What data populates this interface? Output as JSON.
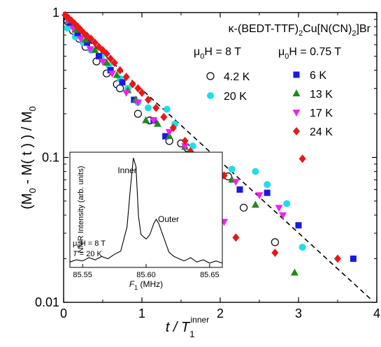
{
  "chart_data": [
    {
      "type": "scatter",
      "xscale": "linear",
      "yscale": "log",
      "xlim": [
        0,
        4
      ],
      "ylim": [
        0.01,
        1
      ],
      "x_ticks": [
        0,
        1,
        2,
        3,
        4
      ],
      "x_tick_labels": [
        "0",
        "1",
        "2",
        "3",
        "4"
      ],
      "y_ticks": [
        0.01,
        0.1,
        1
      ],
      "y_tick_labels": [
        "0.01",
        "0.1",
        "1"
      ],
      "xlabel": {
        "pre": "t / T",
        "sub": "1",
        "sup": "inner"
      },
      "ylabel": {
        "p1": "(M",
        "s1": "0",
        "p2": " - M( t ) ) / M",
        "s2": "0"
      },
      "title": {
        "kappa": "κ",
        "pre": "-(BEDT-TTF)",
        "sub1": "2",
        "mid": "Cu[N(CN)",
        "sub2": "2",
        "post": "]Br"
      },
      "field_headers": [
        {
          "mu": "μ",
          "sub": "0",
          "rest": "H = 8 T"
        },
        {
          "mu": "μ",
          "sub": "0",
          "rest": "H = 0.75 T"
        }
      ],
      "legend_placement": "top-right",
      "fit_line": {
        "style": "dashed",
        "x": [
          0.0,
          3.95
        ],
        "y": [
          0.92,
          0.0102
        ]
      },
      "series": [
        {
          "name": "4.2 K",
          "group": "8 T",
          "marker": "circle-open",
          "color": "#000000",
          "x": [
            0.05,
            0.12,
            0.2,
            0.28,
            0.42,
            0.55,
            0.68,
            0.72,
            0.95,
            1.1,
            1.35,
            1.5,
            1.58,
            1.8,
            2.1,
            2.3,
            2.7
          ],
          "y": [
            0.87,
            0.75,
            0.66,
            0.58,
            0.46,
            0.38,
            0.32,
            0.3,
            0.2,
            0.18,
            0.13,
            0.125,
            0.116,
            0.084,
            0.074,
            0.045,
            0.026
          ]
        },
        {
          "name": "20 K",
          "group": "8 T",
          "marker": "circle",
          "color": "#22dde8",
          "x": [
            0.05,
            0.15,
            0.25,
            0.35,
            0.48,
            0.58,
            0.72,
            0.82,
            0.95,
            1.08,
            1.32,
            1.42,
            1.65,
            1.9,
            2.15,
            2.45,
            2.6,
            2.85,
            3.05
          ],
          "y": [
            0.78,
            0.68,
            0.62,
            0.55,
            0.5,
            0.43,
            0.35,
            0.3,
            0.24,
            0.22,
            0.215,
            0.17,
            0.12,
            0.036,
            0.083,
            0.08,
            0.065,
            0.048,
            0.024
          ]
        },
        {
          "name": "6 K",
          "group": "0.75 T",
          "marker": "square",
          "color": "#1a1ae0",
          "x": [
            0.08,
            0.18,
            0.3,
            0.45,
            0.6,
            0.75,
            0.9,
            1.15,
            1.3,
            1.5,
            1.75,
            1.95,
            2.25,
            2.6,
            3.0,
            3.7
          ],
          "y": [
            0.85,
            0.72,
            0.62,
            0.5,
            0.4,
            0.33,
            0.25,
            0.18,
            0.14,
            0.1,
            0.1,
            0.085,
            0.06,
            0.057,
            0.034,
            0.02
          ]
        },
        {
          "name": "13 K",
          "group": "0.75 T",
          "marker": "triangle-up",
          "color": "#1e8a1e",
          "x": [
            0.06,
            0.15,
            0.28,
            0.4,
            0.55,
            0.68,
            0.82,
            0.92,
            1.05,
            1.2,
            1.35,
            1.55,
            1.75,
            2.0,
            2.15,
            2.45,
            2.95
          ],
          "y": [
            0.88,
            0.76,
            0.65,
            0.55,
            0.45,
            0.37,
            0.29,
            0.25,
            0.18,
            0.17,
            0.14,
            0.118,
            0.09,
            0.075,
            0.07,
            0.047,
            0.016
          ]
        },
        {
          "name": "17 K",
          "group": "0.75 T",
          "marker": "triangle-down",
          "color": "#ee22ee",
          "x": [
            0.05,
            0.12,
            0.22,
            0.34,
            0.5,
            0.62,
            0.8,
            0.95,
            1.15,
            1.35,
            1.55,
            1.75,
            1.95,
            2.2,
            2.5,
            2.75,
            2.8,
            2.05
          ],
          "y": [
            0.89,
            0.78,
            0.66,
            0.56,
            0.46,
            0.38,
            0.28,
            0.24,
            0.18,
            0.15,
            0.12,
            0.1,
            0.09,
            0.068,
            0.055,
            0.045,
            0.04,
            0.036
          ]
        },
        {
          "name": "24 K",
          "group": "0.75 T",
          "marker": "diamond",
          "color": "#e81818",
          "x": [
            0.02,
            0.06,
            0.1,
            0.14,
            0.18,
            0.22,
            0.26,
            0.3,
            0.35,
            0.4,
            0.45,
            0.5,
            0.55,
            0.6,
            0.65,
            0.72,
            0.8,
            0.88,
            0.95,
            1.0,
            1.08,
            1.18,
            1.28,
            1.4,
            1.55,
            1.62,
            1.9,
            2.05,
            2.2,
            2.7,
            3.05,
            3.5
          ],
          "y": [
            0.96,
            0.92,
            0.88,
            0.84,
            0.8,
            0.76,
            0.72,
            0.69,
            0.66,
            0.62,
            0.58,
            0.55,
            0.52,
            0.48,
            0.45,
            0.4,
            0.36,
            0.32,
            0.3,
            0.28,
            0.25,
            0.22,
            0.19,
            0.16,
            0.13,
            0.11,
            0.08,
            0.075,
            0.028,
            0.022,
            0.098,
            0.02
          ]
        }
      ]
    },
    {
      "type": "line",
      "panel": "inset",
      "xlim": [
        85.54,
        85.66
      ],
      "x_ticks": [
        85.55,
        85.6,
        85.65
      ],
      "x_tick_labels": [
        "85.55",
        "85.60",
        "85.65"
      ],
      "ylim": [
        0,
        1
      ],
      "xlabel": {
        "pre": "F",
        "sub": "1",
        "post": " (MHz)"
      },
      "ylabel": "NMR Intensity  (arb. units)",
      "conditions": [
        {
          "mu": "μ",
          "sub": "0",
          "rest": "H = 8 T"
        },
        {
          "pre": "T",
          "rest": " = 20 K"
        }
      ],
      "annotations": [
        {
          "text": "Inner",
          "x": 85.592,
          "y": 1.0
        },
        {
          "text": "Outer",
          "x": 85.608,
          "y": 0.52
        }
      ],
      "series": [
        {
          "name": "spectrum",
          "x": [
            85.54,
            85.545,
            85.55,
            85.555,
            85.56,
            85.565,
            85.57,
            85.575,
            85.58,
            85.585,
            85.588,
            85.59,
            85.592,
            85.594,
            85.596,
            85.6,
            85.603,
            85.606,
            85.608,
            85.61,
            85.614,
            85.618,
            85.622,
            85.626,
            85.63,
            85.635,
            85.64,
            85.645,
            85.65,
            85.655,
            85.66
          ],
          "y": [
            0.03,
            0.05,
            0.04,
            0.07,
            0.05,
            0.08,
            0.06,
            0.1,
            0.13,
            0.35,
            0.75,
            0.98,
            0.9,
            0.45,
            0.28,
            0.24,
            0.28,
            0.38,
            0.42,
            0.38,
            0.25,
            0.12,
            0.08,
            0.06,
            0.04,
            0.07,
            0.03,
            0.05,
            0.02,
            0.04,
            0.02
          ]
        }
      ]
    }
  ]
}
